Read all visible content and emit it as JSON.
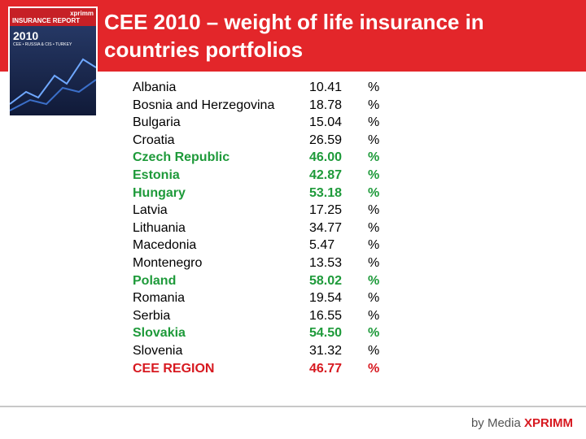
{
  "header": {
    "title_lines": [
      "CEE 2010 – weight of life insurance in",
      "countries portfolios"
    ]
  },
  "cover": {
    "brand": "xprimm",
    "report": "INSURANCE REPORT",
    "year": "2010",
    "regions": "CEE • RUSSIA & CIS • TURKEY"
  },
  "table": {
    "rows": [
      {
        "country": "Albania",
        "value": "10.41",
        "unit": "%",
        "style": "normal"
      },
      {
        "country": "Bosnia and Herzegovina",
        "value": "18.78",
        "unit": "%",
        "style": "normal"
      },
      {
        "country": "Bulgaria",
        "value": "15.04",
        "unit": "%",
        "style": "normal"
      },
      {
        "country": "Croatia",
        "value": "26.59",
        "unit": "%",
        "style": "normal"
      },
      {
        "country": "Czech Republic",
        "value": "46.00",
        "unit": "%",
        "style": "green"
      },
      {
        "country": "Estonia",
        "value": "42.87",
        "unit": "%",
        "style": "green"
      },
      {
        "country": "Hungary",
        "value": "53.18",
        "unit": "%",
        "style": "green"
      },
      {
        "country": "Latvia",
        "value": "17.25",
        "unit": "%",
        "style": "normal"
      },
      {
        "country": "Lithuania",
        "value": "34.77",
        "unit": "%",
        "style": "normal"
      },
      {
        "country": "Macedonia",
        "value": "5.47",
        "unit": "%",
        "style": "normal"
      },
      {
        "country": "Montenegro",
        "value": "13.53",
        "unit": "%",
        "style": "normal"
      },
      {
        "country": "Poland",
        "value": "58.02",
        "unit": "%",
        "style": "green"
      },
      {
        "country": "Romania",
        "value": "19.54",
        "unit": "%",
        "style": "normal"
      },
      {
        "country": "Serbia",
        "value": "16.55",
        "unit": "%",
        "style": "normal"
      },
      {
        "country": "Slovakia",
        "value": "54.50",
        "unit": "%",
        "style": "green"
      },
      {
        "country": "Slovenia",
        "value": "31.32",
        "unit": "%",
        "style": "normal"
      },
      {
        "country": "CEE REGION",
        "value": "46.77",
        "unit": "%",
        "style": "red"
      }
    ]
  },
  "footer": {
    "by": "by Media",
    "brand": "XPRIMM"
  }
}
